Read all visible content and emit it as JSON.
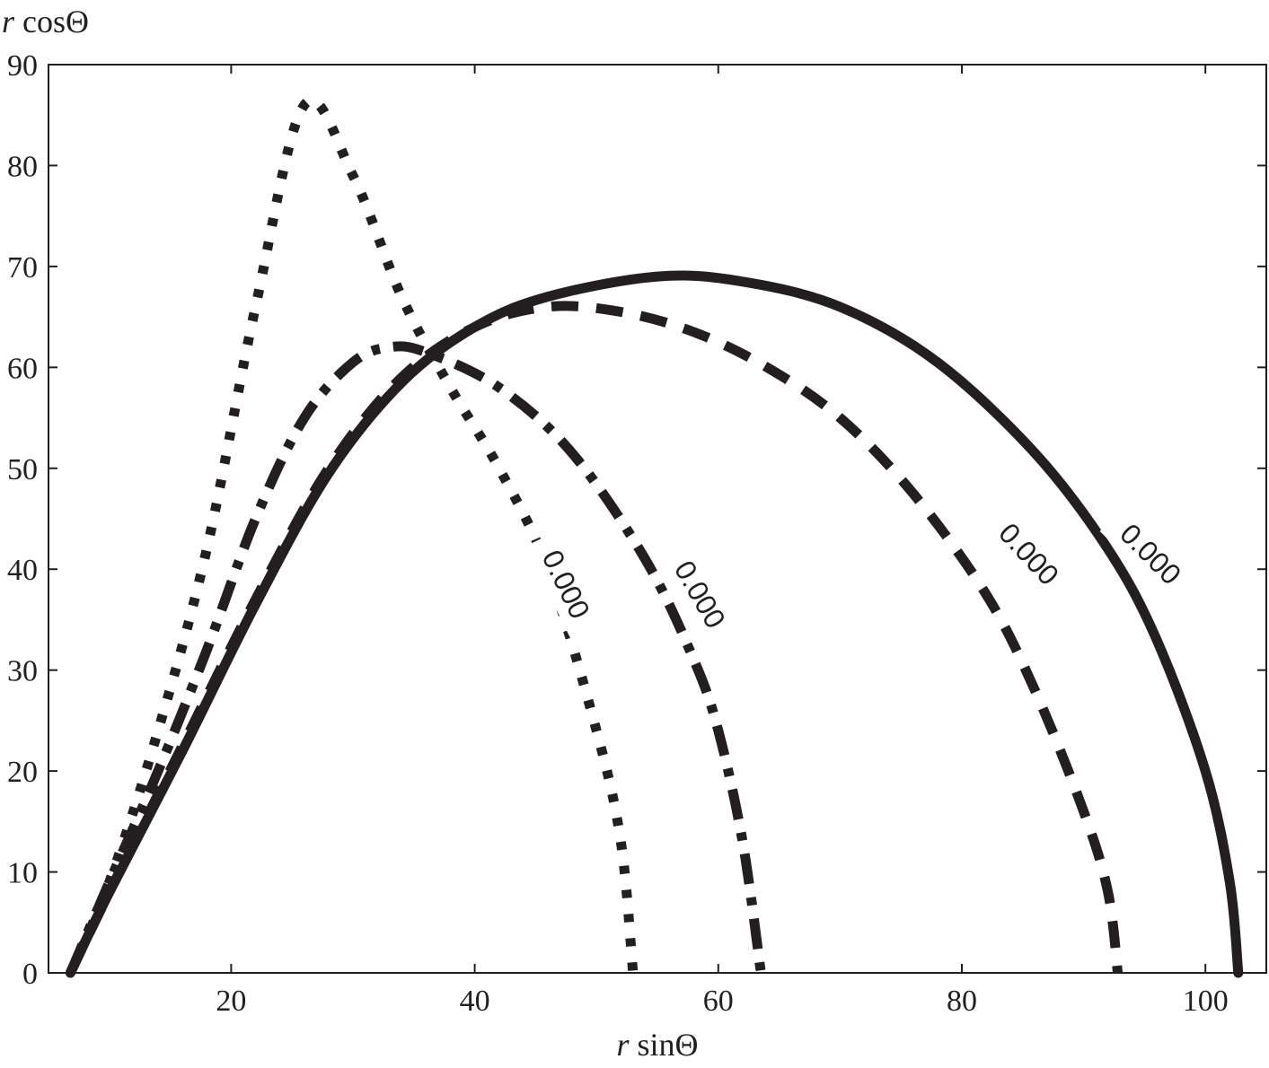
{
  "chart_data": {
    "type": "line",
    "xlabel_var": "r",
    "xlabel_fn": " sinΘ",
    "ylabel_var": "r",
    "ylabel_fn": " cosΘ",
    "xlim": [
      5,
      105
    ],
    "ylim": [
      0,
      90
    ],
    "xticks": [
      20,
      40,
      60,
      80,
      100
    ],
    "yticks": [
      0,
      10,
      20,
      30,
      40,
      50,
      60,
      70,
      80,
      90
    ],
    "grid": false,
    "legend": "none",
    "colors": {
      "ink": "#231f20"
    },
    "series": [
      {
        "style": "dotted",
        "label": "0.000",
        "x": [
          6.8,
          10,
          14,
          18,
          22,
          26,
          30,
          34,
          38,
          42,
          46,
          50,
          52,
          53
        ],
        "y": [
          0,
          9,
          24,
          42,
          66,
          86,
          79,
          67,
          58,
          50,
          40,
          24,
          13,
          0
        ]
      },
      {
        "style": "dash-dot",
        "label": "0.000",
        "x": [
          6.8,
          10,
          14,
          18,
          22,
          26,
          30,
          33,
          36,
          42,
          48,
          54,
          58,
          60,
          62,
          63.5
        ],
        "y": [
          0,
          9,
          20,
          32,
          45,
          55,
          60.5,
          62,
          61.5,
          58,
          51.5,
          41,
          31,
          24,
          13,
          0
        ]
      },
      {
        "style": "dashed",
        "label": "0.000",
        "x": [
          6.8,
          10,
          16,
          22,
          28,
          34,
          40,
          46,
          52,
          58,
          64,
          70,
          76,
          82,
          86,
          90,
          92,
          92.8
        ],
        "y": [
          0,
          8,
          22.5,
          37,
          50,
          59,
          64,
          66,
          65.5,
          63.5,
          60,
          55,
          47.5,
          37.5,
          28,
          16,
          8,
          0
        ]
      },
      {
        "style": "solid",
        "label": "0.000",
        "x": [
          6.8,
          10,
          16,
          22,
          28,
          34,
          40,
          46,
          55,
          62,
          70,
          78,
          86,
          92,
          96,
          100,
          102,
          102.7
        ],
        "y": [
          0,
          8,
          22,
          36.5,
          49.5,
          58.5,
          64,
          67,
          69,
          68.5,
          66,
          60.5,
          51.5,
          42,
          33,
          20,
          9,
          0
        ]
      }
    ]
  }
}
